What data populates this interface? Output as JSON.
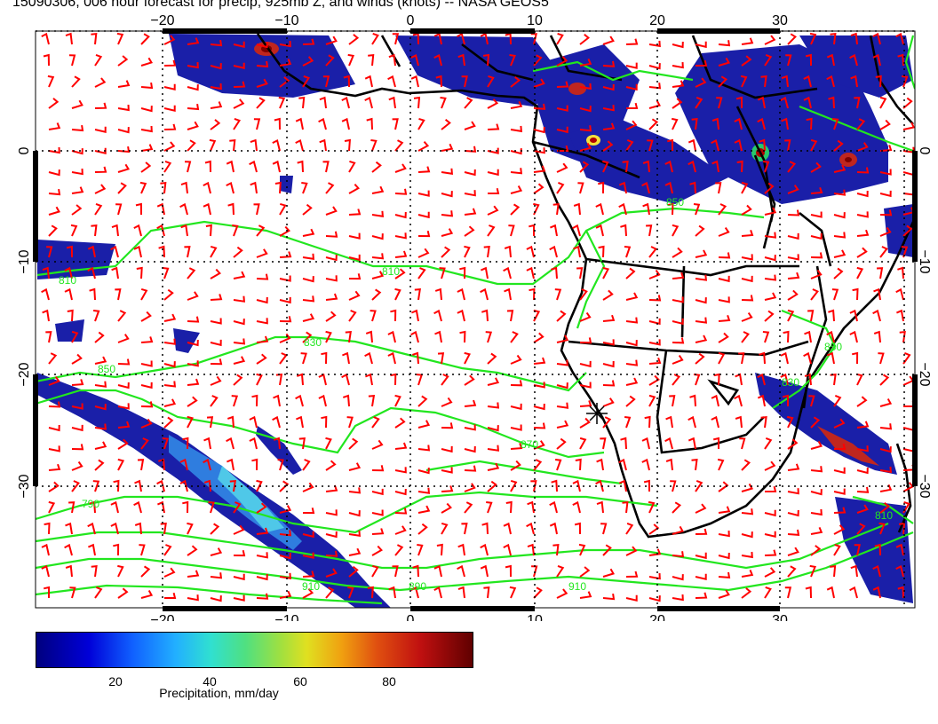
{
  "title": "15090306, 006 hour forecast for precip, 925mb Z, and winds (knots) -- NASA GEOS5",
  "map": {
    "lon_ticks": [
      "−20",
      "−10",
      "0",
      "10",
      "20",
      "30"
    ],
    "lat_ticks": [
      "0",
      "−10",
      "−20",
      "−30"
    ],
    "contour_labels": [
      "810",
      "810",
      "830",
      "850",
      "850",
      "790",
      "870",
      "830",
      "810",
      "890",
      "910",
      "910",
      "850"
    ],
    "colors": {
      "coast": "#000000",
      "contour": "#22e61f",
      "barb": "#ff0000",
      "grid": "#000000",
      "precip_low": "#000080",
      "precip_high": "#800000"
    }
  },
  "colorbar": {
    "ticks": [
      "20",
      "40",
      "60",
      "80"
    ],
    "label": "Precipitation, mm/day"
  }
}
